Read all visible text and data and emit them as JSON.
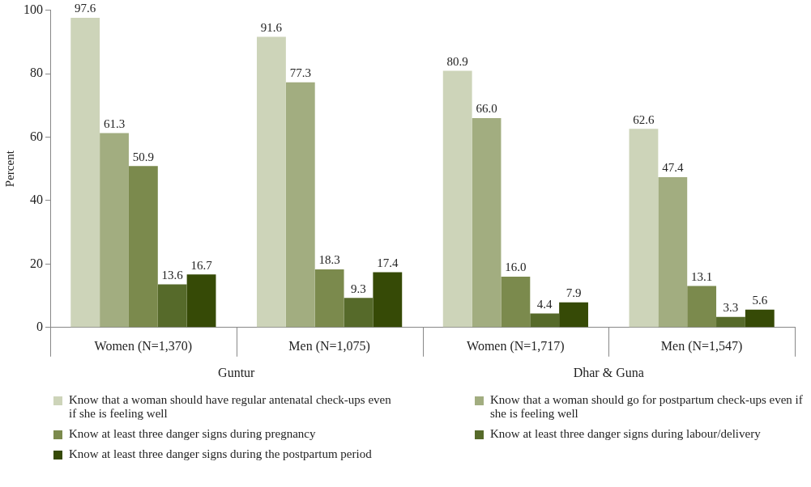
{
  "chart_data": {
    "type": "bar",
    "ylabel": "Percent",
    "categories": [
      "Women (N=1,370)",
      "Men (N=1,075)",
      "Women (N=1,717)",
      "Men (N=1,547)"
    ],
    "series": [
      {
        "name": "Know that a woman should have regular antenatal check-ups even if she is feeling well",
        "color": "#cdd4b9",
        "values": [
          97.6,
          91.6,
          80.9,
          62.6
        ],
        "value_labels": [
          "97.6",
          "91.6",
          "80.9",
          "62.6"
        ]
      },
      {
        "name": "Know that a woman should go for postpartum check-ups even if she is feeling well",
        "color": "#a2ad80",
        "values": [
          61.3,
          77.3,
          66.0,
          47.4
        ],
        "value_labels": [
          "61.3",
          "77.3",
          "66.0",
          "47.4"
        ]
      },
      {
        "name": "Know at least three danger signs during pregnancy",
        "color": "#7b8a4d",
        "values": [
          50.9,
          18.3,
          16.0,
          13.1
        ],
        "value_labels": [
          "50.9",
          "18.3",
          "16.0",
          "13.1"
        ]
      },
      {
        "name": "Know at least three danger signs during labour/delivery",
        "color": "#566a2a",
        "values": [
          13.6,
          9.3,
          4.4,
          3.3
        ],
        "value_labels": [
          "13.6",
          "9.3",
          "4.4",
          "3.3"
        ]
      },
      {
        "name": "Know at least three danger signs during the postpartum period",
        "color": "#364a06",
        "values": [
          16.7,
          17.4,
          7.9,
          5.6
        ],
        "value_labels": [
          "16.7",
          "17.4",
          "7.9",
          "5.6"
        ]
      }
    ],
    "annotations": [
      "Guntur",
      "Dhar & Guna"
    ],
    "ylim": [
      0,
      100
    ],
    "yticks": [
      0,
      20,
      40,
      60,
      80,
      100
    ],
    "grid": false,
    "legend": "bottom"
  }
}
